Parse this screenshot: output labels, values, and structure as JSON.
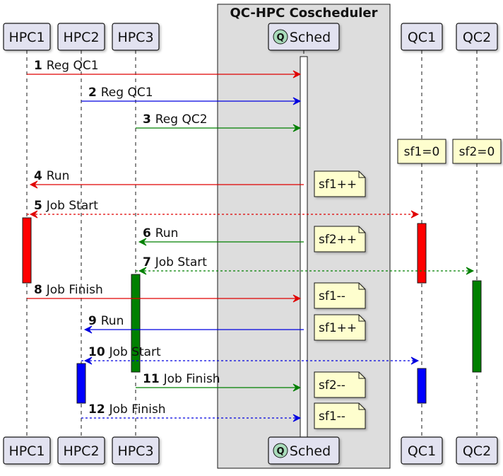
{
  "box": {
    "title": "QC-HPC Coscheduler"
  },
  "participants": [
    {
      "id": "hpc1",
      "label": "HPC1"
    },
    {
      "id": "hpc2",
      "label": "HPC2"
    },
    {
      "id": "hpc3",
      "label": "HPC3"
    },
    {
      "id": "sched",
      "label": "Sched",
      "badge": "Q"
    },
    {
      "id": "qc1",
      "label": "QC1"
    },
    {
      "id": "qc2",
      "label": "QC2"
    }
  ],
  "initial_notes": [
    {
      "on": "qc1",
      "text": "sf1=0"
    },
    {
      "on": "qc2",
      "text": "sf2=0"
    }
  ],
  "messages": [
    {
      "num": "1",
      "text": "Reg QC1",
      "from": "hpc1",
      "to": "sched",
      "color": "#e00000",
      "dashed": false
    },
    {
      "num": "2",
      "text": "Reg QC1",
      "from": "hpc2",
      "to": "sched",
      "color": "#0000e0",
      "dashed": false
    },
    {
      "num": "3",
      "text": "Reg QC2",
      "from": "hpc3",
      "to": "sched",
      "color": "#008000",
      "dashed": false
    },
    {
      "num": "4",
      "text": "Run",
      "from": "sched",
      "to": "hpc1",
      "color": "#e00000",
      "dashed": false,
      "note": "sf1++"
    },
    {
      "num": "5",
      "text": "Job Start",
      "from": "hpc1",
      "to": "qc1",
      "color": "#e00000",
      "dashed": true
    },
    {
      "num": "6",
      "text": "Run",
      "from": "sched",
      "to": "hpc3",
      "color": "#008000",
      "dashed": false,
      "note": "sf2++"
    },
    {
      "num": "7",
      "text": "Job Start",
      "from": "hpc3",
      "to": "qc2",
      "color": "#008000",
      "dashed": true
    },
    {
      "num": "8",
      "text": "Job Finish",
      "from": "hpc1",
      "to": "sched",
      "color": "#e00000",
      "dashed": false,
      "note": "sf1--"
    },
    {
      "num": "9",
      "text": "Run",
      "from": "sched",
      "to": "hpc2",
      "color": "#0000e0",
      "dashed": false,
      "note": "sf1++"
    },
    {
      "num": "10",
      "text": "Job Start",
      "from": "hpc2",
      "to": "qc1",
      "color": "#0000e0",
      "dashed": true
    },
    {
      "num": "11",
      "text": "Job Finish",
      "from": "hpc3",
      "to": "sched",
      "color": "#008000",
      "dashed": false,
      "note": "sf2--"
    },
    {
      "num": "12",
      "text": "Job Finish",
      "from": "hpc2",
      "to": "sched",
      "color": "#0000e0",
      "dashed": true,
      "note": "sf1--"
    }
  ],
  "activations": [
    {
      "on": "sched",
      "color": "#ffffff"
    },
    {
      "on": "hpc1",
      "color": "#ff0000"
    },
    {
      "on": "qc1",
      "color": "#ff0000"
    },
    {
      "on": "hpc3",
      "color": "#008000"
    },
    {
      "on": "qc2",
      "color": "#008000"
    },
    {
      "on": "hpc2",
      "color": "#0000ff"
    },
    {
      "on": "qc1",
      "color": "#0000ff"
    }
  ],
  "colors": {
    "participant_fill": "#e2e2f0",
    "participant_stroke": "#181818",
    "box_fill": "#dddddd",
    "note_fill": "#fefece",
    "badge_fill": "#a9dcbb",
    "lifeline": "#181818"
  }
}
